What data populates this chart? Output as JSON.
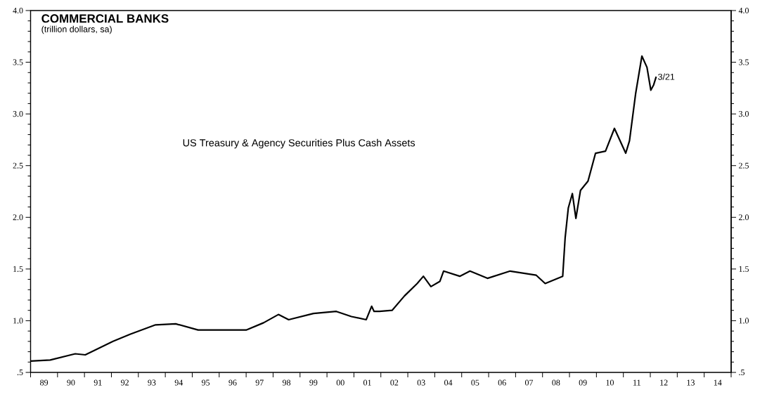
{
  "chart_data": {
    "type": "line",
    "title": "COMMERCIAL BANKS",
    "subtitle": "(trillion dollars, sa)",
    "annotations": [
      "US Treasury & Agency Securities Plus Cash Assets",
      {
        "text": "3/21",
        "x": "2012-03-21",
        "y": 3.36
      }
    ],
    "xlim": [
      "1989-01-01",
      "2015-01-01"
    ],
    "xticks": [
      {
        "value": "1989-01-01",
        "label": null
      },
      {
        "value": "1989-07-02",
        "label": "89"
      },
      {
        "value": "1990-01-01",
        "label": null
      },
      {
        "value": "1990-07-02",
        "label": "90"
      },
      {
        "value": "1991-01-01",
        "label": null
      },
      {
        "value": "1991-07-02",
        "label": "91"
      },
      {
        "value": "1992-01-01",
        "label": null
      },
      {
        "value": "1992-07-02",
        "label": "92"
      },
      {
        "value": "1993-01-01",
        "label": null
      },
      {
        "value": "1993-07-02",
        "label": "93"
      },
      {
        "value": "1994-01-01",
        "label": null
      },
      {
        "value": "1994-07-02",
        "label": "94"
      },
      {
        "value": "1995-01-01",
        "label": null
      },
      {
        "value": "1995-07-02",
        "label": "95"
      },
      {
        "value": "1996-01-01",
        "label": null
      },
      {
        "value": "1996-07-02",
        "label": "96"
      },
      {
        "value": "1997-01-01",
        "label": null
      },
      {
        "value": "1997-07-02",
        "label": "97"
      },
      {
        "value": "1998-01-01",
        "label": null
      },
      {
        "value": "1998-07-02",
        "label": "98"
      },
      {
        "value": "1999-01-01",
        "label": null
      },
      {
        "value": "1999-07-02",
        "label": "99"
      },
      {
        "value": "2000-01-01",
        "label": null
      },
      {
        "value": "2000-07-02",
        "label": "00"
      },
      {
        "value": "2001-01-01",
        "label": null
      },
      {
        "value": "2001-07-02",
        "label": "01"
      },
      {
        "value": "2002-01-01",
        "label": null
      },
      {
        "value": "2002-07-02",
        "label": "02"
      },
      {
        "value": "2003-01-01",
        "label": null
      },
      {
        "value": "2003-07-02",
        "label": "03"
      },
      {
        "value": "2004-01-01",
        "label": null
      },
      {
        "value": "2004-07-02",
        "label": "04"
      },
      {
        "value": "2005-01-01",
        "label": null
      },
      {
        "value": "2005-07-02",
        "label": "05"
      },
      {
        "value": "2006-01-01",
        "label": null
      },
      {
        "value": "2006-07-02",
        "label": "06"
      },
      {
        "value": "2007-01-01",
        "label": null
      },
      {
        "value": "2007-07-02",
        "label": "07"
      },
      {
        "value": "2008-01-01",
        "label": null
      },
      {
        "value": "2008-07-02",
        "label": "08"
      },
      {
        "value": "2009-01-01",
        "label": null
      },
      {
        "value": "2009-07-02",
        "label": "09"
      },
      {
        "value": "2010-01-01",
        "label": null
      },
      {
        "value": "2010-07-02",
        "label": "10"
      },
      {
        "value": "2011-01-01",
        "label": null
      },
      {
        "value": "2011-07-02",
        "label": "11"
      },
      {
        "value": "2012-01-01",
        "label": null
      },
      {
        "value": "2012-07-02",
        "label": "12"
      },
      {
        "value": "2013-01-01",
        "label": null
      },
      {
        "value": "2013-07-02",
        "label": "13"
      },
      {
        "value": "2014-01-01",
        "label": null
      },
      {
        "value": "2014-07-02",
        "label": "14"
      },
      {
        "value": "2015-01-01",
        "label": null
      }
    ],
    "ylim": [
      0.5,
      4.0
    ],
    "yticks": [
      {
        "value": 0.5,
        "label": ".5"
      },
      {
        "value": 1.0,
        "label": "1.0"
      },
      {
        "value": 1.5,
        "label": "1.5"
      },
      {
        "value": 2.0,
        "label": "2.0"
      },
      {
        "value": 2.5,
        "label": "2.5"
      },
      {
        "value": 3.0,
        "label": "3.0"
      },
      {
        "value": 3.5,
        "label": "3.5"
      },
      {
        "value": 4.0,
        "label": "4.0"
      }
    ],
    "y2lim": [
      0.5,
      4.0
    ],
    "y2ticks": [
      {
        "value": 0.5,
        "label": ".5"
      },
      {
        "value": 1.0,
        "label": "1.0"
      },
      {
        "value": 1.5,
        "label": "1.5"
      },
      {
        "value": 2.0,
        "label": "2.0"
      },
      {
        "value": 2.5,
        "label": "2.5"
      },
      {
        "value": 3.0,
        "label": "3.0"
      },
      {
        "value": 3.5,
        "label": "3.5"
      },
      {
        "value": 4.0,
        "label": "4.0"
      }
    ],
    "series": [
      {
        "color": "#000000",
        "x": [
          "1989-01-01",
          "1989-09-23",
          "1990-08-29",
          "1991-01-12",
          "1992-01-23",
          "1992-09-16",
          "1993-08-22",
          "1994-05-22",
          "1995-03-21",
          "1996-04-01",
          "1997-01-01",
          "1997-08-25",
          "1998-03-14",
          "1998-07-31",
          "1999-07-02",
          "2000-05-07",
          "2000-11-28",
          "2001-06-17",
          "2001-08-29",
          "2001-10-01",
          "2001-12-13",
          "2002-06-02",
          "2002-11-17",
          "2003-05-08",
          "2003-07-31",
          "2003-11-10",
          "2004-03-10",
          "2004-04-30",
          "2004-12-06",
          "2005-04-23",
          "2005-12-16",
          "2006-10-19",
          "2007-10-08",
          "2008-02-06",
          "2008-10-01",
          "2008-11-03",
          "2008-12-16",
          "2009-02-09",
          "2009-03-29",
          "2009-05-30",
          "2009-09-09",
          "2009-12-20",
          "2010-05-04",
          "2010-09-02",
          "2011-02-02",
          "2011-03-25",
          "2011-06-17",
          "2011-09-09",
          "2011-11-17",
          "2012-01-08",
          "2012-02-15",
          "2012-03-21"
        ],
        "values": [
          0.61,
          0.62,
          0.68,
          0.67,
          0.8,
          0.87,
          0.96,
          0.97,
          0.91,
          0.91,
          0.91,
          0.98,
          1.06,
          1.01,
          1.07,
          1.09,
          1.04,
          1.01,
          1.14,
          1.09,
          1.09,
          1.1,
          1.24,
          1.36,
          1.43,
          1.33,
          1.38,
          1.48,
          1.43,
          1.48,
          1.41,
          1.48,
          1.44,
          1.36,
          1.43,
          1.8,
          2.09,
          2.23,
          1.99,
          2.26,
          2.35,
          2.62,
          2.64,
          2.86,
          2.62,
          2.74,
          3.2,
          3.56,
          3.45,
          3.23,
          3.28,
          3.36
        ]
      }
    ]
  }
}
